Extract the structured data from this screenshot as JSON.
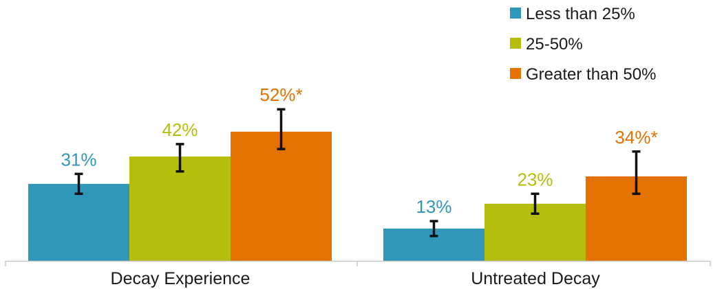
{
  "chart_data": {
    "type": "bar",
    "categories": [
      "Decay Experience",
      "Untreated Decay"
    ],
    "series": [
      {
        "name": "Less than 25%",
        "color": "#3197b9",
        "values": [
          31,
          13
        ],
        "labels": [
          "31%",
          "13%"
        ],
        "error_low": [
          27,
          10
        ],
        "error_high": [
          35,
          16
        ]
      },
      {
        "name": "25-50%",
        "color": "#b5bd0d",
        "values": [
          42,
          23
        ],
        "labels": [
          "42%",
          "23%"
        ],
        "error_low": [
          36,
          19
        ],
        "error_high": [
          47,
          27
        ]
      },
      {
        "name": "Greater than 50%",
        "color": "#e37200",
        "values": [
          52,
          34
        ],
        "labels": [
          "52%*",
          "34%*"
        ],
        "error_low": [
          45,
          27
        ],
        "error_high": [
          61,
          44
        ]
      }
    ],
    "ylim": [
      0,
      105
    ],
    "grid": false,
    "legend_position": "top-right",
    "title": "",
    "xlabel": "",
    "ylabel": ""
  }
}
